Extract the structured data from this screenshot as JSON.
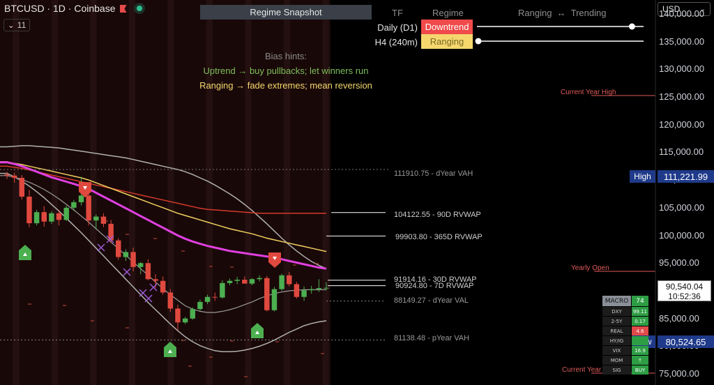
{
  "header": {
    "symbol": "BTCUSD · 1D · Coinbase",
    "collapse_count": "11",
    "collapse_icon": "chevron-down-icon"
  },
  "currency": {
    "selected": "USD"
  },
  "snapshot": {
    "title": "Regime Snapshot",
    "columns": {
      "tf": "TF",
      "regime": "Regime",
      "range": "Ranging  ↔  Trending"
    },
    "rows": [
      {
        "tf": "Daily (D1)",
        "regime": "Downtrend",
        "color": "#f04a4a",
        "text_color": "#ffffff",
        "trend_strength": 0.93
      },
      {
        "tf": "H4 (240m)",
        "regime": "Ranging",
        "color": "#f5d76e",
        "text_color": "#7a6a22",
        "trend_strength": 0.0
      }
    ]
  },
  "bias": {
    "title": "Bias hints:",
    "line1": "Uptrend → buy pullbacks; let winners run",
    "line2": "Ranging → fade extremes; mean reversion",
    "line1_color": "#7dbf5a",
    "line2_color": "#f5d76e"
  },
  "price_axis": {
    "ticks": [
      "140,000.00",
      "135,000.00",
      "130,000.00",
      "125,000.00",
      "120,000.00",
      "115,000.00",
      "110,000.00",
      "105,000.00",
      "100,000.00",
      "95,000.00",
      "90,000.00",
      "85,000.00",
      "80,000.00",
      "75,000.00"
    ],
    "high_tag": "High",
    "high_value": "111,221.99",
    "low_tag": "Low",
    "low_value": "80,524.65",
    "current_price": "90,540.04",
    "countdown": "10:52:36"
  },
  "levels": {
    "dyear_vah": "111910.75 - dYear VAH",
    "rvwap_90d": "104122.55 - 90D RVWAP",
    "overlap_text": "99903.80 - 365D RVWAP",
    "rvwap_30d": "91914.16 - 30D RVWAP",
    "rvwap_7d": "90924.80 - 7D RVWAP",
    "dyear_val": "88149.27 - dYear VAL",
    "pyear_vah": "81138.48 - pYear VAH",
    "current_year_high": "Current Year High",
    "yearly_open": "Yearly Open",
    "current_year_low": "Current Year Low"
  },
  "macro": {
    "header_key": "MACRO",
    "header_value": "74",
    "rows": [
      {
        "k": "DXY",
        "v": "99.11",
        "color": "#2e9e45"
      },
      {
        "k": "2-5Y",
        "v": "0.17",
        "color": "#2e9e45"
      },
      {
        "k": "REAL",
        "v": "4.6",
        "color": "#e04a4a"
      },
      {
        "k": "HY/IG",
        "v": "",
        "color": "#2e9e45"
      },
      {
        "k": "VIX",
        "v": "16.9",
        "color": "#2e9e45"
      },
      {
        "k": "MOM",
        "v": "↑",
        "color": "#2e9e45"
      },
      {
        "k": "SIG",
        "v": "BUY",
        "color": "#2e9e45"
      }
    ]
  },
  "colors": {
    "up": "#4caf50",
    "down": "#e0493f",
    "magenta": "#e040e0",
    "yellow": "#f0d060",
    "red_line": "#d23a2a",
    "band": "#b0b0b0"
  },
  "chart_data": {
    "type": "candlestick",
    "ohlc": [
      [
        111000,
        111500,
        110200,
        110800
      ],
      [
        110800,
        111300,
        109500,
        110400
      ],
      [
        110400,
        110900,
        106500,
        107000
      ],
      [
        107000,
        108200,
        101500,
        102200
      ],
      [
        102200,
        104600,
        101800,
        104200
      ],
      [
        104200,
        105300,
        101600,
        102500
      ],
      [
        102500,
        104400,
        102100,
        104000
      ],
      [
        104000,
        104600,
        101800,
        102800
      ],
      [
        102800,
        105400,
        102600,
        105000
      ],
      [
        105000,
        106400,
        104400,
        106000
      ],
      [
        106000,
        110600,
        105400,
        107200
      ],
      [
        107200,
        107800,
        101800,
        102700
      ],
      [
        102700,
        103800,
        101200,
        103400
      ],
      [
        103400,
        104000,
        101500,
        102100
      ],
      [
        102100,
        102800,
        98600,
        99100
      ],
      [
        99100,
        99500,
        95600,
        96100
      ],
      [
        96100,
        97500,
        95400,
        97000
      ],
      [
        97000,
        97800,
        93500,
        94300
      ],
      [
        94300,
        95200,
        93000,
        95000
      ],
      [
        95000,
        95700,
        91900,
        92100
      ],
      [
        92100,
        93000,
        90500,
        91800
      ],
      [
        91800,
        92600,
        89300,
        89700
      ],
      [
        89700,
        90300,
        86200,
        86800
      ],
      [
        86800,
        87500,
        82900,
        84300
      ],
      [
        84300,
        85300,
        84000,
        85000
      ],
      [
        85000,
        87000,
        84800,
        86700
      ],
      [
        86700,
        88400,
        86400,
        88000
      ],
      [
        88000,
        89300,
        87600,
        88900
      ],
      [
        88900,
        89700,
        88200,
        88800
      ],
      [
        88800,
        91900,
        88600,
        91400
      ],
      [
        91400,
        92200,
        91000,
        91800
      ],
      [
        91800,
        92500,
        91200,
        92000
      ],
      [
        92000,
        92600,
        91500,
        91300
      ],
      [
        91300,
        92300,
        91000,
        92100
      ],
      [
        92100,
        92800,
        91700,
        92300
      ],
      [
        92300,
        92700,
        86300,
        86500
      ],
      [
        86500,
        90700,
        86300,
        90300
      ],
      [
        90300,
        93100,
        90000,
        92800
      ],
      [
        92800,
        93400,
        90800,
        91200
      ],
      [
        91200,
        91600,
        88600,
        88900
      ],
      [
        88900,
        90800,
        88200,
        90100
      ],
      [
        90100,
        90900,
        89500,
        90300
      ],
      [
        90300,
        92100,
        89800,
        90500
      ],
      [
        90500,
        91500,
        90100,
        90540
      ]
    ],
    "ma_yellow": [
      113300,
      113000,
      112800,
      112500,
      112200,
      111900,
      111600,
      111300,
      111000,
      110700,
      110400,
      110000,
      109500,
      109000,
      108500,
      108000,
      107500,
      107000,
      106500,
      106000,
      105500,
      105000,
      104500,
      104000,
      103600,
      103200,
      102800,
      102400,
      102000,
      101600,
      101200,
      100900,
      100600,
      100300,
      99900,
      99500,
      99200,
      98900,
      98600,
      98300,
      98000,
      97700,
      97400,
      97100
    ],
    "ma_magenta": [
      113200,
      112900,
      112500,
      112000,
      111500,
      111000,
      110500,
      110100,
      109700,
      109300,
      108900,
      108400,
      107700,
      107000,
      106300,
      105600,
      104900,
      104200,
      103500,
      102800,
      102100,
      101400,
      100700,
      100000,
      99400,
      98900,
      98500,
      98100,
      97800,
      97500,
      97200,
      97000,
      96800,
      96600,
      96400,
      96200,
      96000,
      95700,
      95400,
      95100,
      94800,
      94500,
      94200,
      94000
    ],
    "ma_red": [
      112500,
      112300,
      112100,
      111800,
      111500,
      111200,
      110900,
      110600,
      110300,
      110000,
      109700,
      109400,
      109100,
      108800,
      108500,
      108200,
      107900,
      107600,
      107300,
      107000,
      106700,
      106400,
      106100,
      105800,
      105500,
      105200,
      104900,
      104700,
      104600,
      104500,
      104400,
      104300,
      104200,
      104100,
      104000,
      104000,
      104000,
      104000,
      104000,
      104000,
      104000,
      104000,
      104000,
      104000
    ],
    "bb_upper": [
      116000,
      116100,
      116200,
      116200,
      116100,
      116000,
      115900,
      115800,
      115600,
      115400,
      115200,
      115000,
      114800,
      114600,
      114400,
      114200,
      114000,
      113700,
      113400,
      113100,
      112800,
      112500,
      112200,
      111900,
      111500,
      111000,
      110400,
      109800,
      109100,
      108300,
      107500,
      106600,
      105600,
      104500,
      103300,
      102100,
      100800,
      99500,
      98300,
      97200,
      96200,
      95300,
      94600,
      94000
    ],
    "bb_lower": [
      111200,
      110600,
      109800,
      108900,
      107900,
      106800,
      105600,
      104400,
      103100,
      101800,
      100500,
      99100,
      97700,
      96300,
      94900,
      93500,
      92100,
      90700,
      89300,
      87900,
      86600,
      85300,
      84000,
      82800,
      81700,
      80800,
      80100,
      79600,
      79200,
      79000,
      79000,
      79100,
      79300,
      79600,
      80000,
      80500,
      81100,
      81800,
      82500,
      83100,
      83700,
      84100,
      84400,
      84600
    ],
    "bb_mid": [
      110800,
      110500,
      110100,
      109600,
      109000,
      108300,
      107500,
      106600,
      105600,
      104600,
      103500,
      102400,
      101200,
      100000,
      98800,
      97600,
      96400,
      95200,
      94000,
      92800,
      91600,
      90400,
      89300,
      88300,
      87300,
      86700,
      86300,
      86100,
      86100,
      86300,
      86600,
      87000,
      87500,
      88000,
      88600,
      89100,
      89500,
      89800,
      90000,
      90100,
      90200,
      90200,
      90200,
      90200
    ],
    "ylim": [
      73000,
      142500
    ]
  }
}
